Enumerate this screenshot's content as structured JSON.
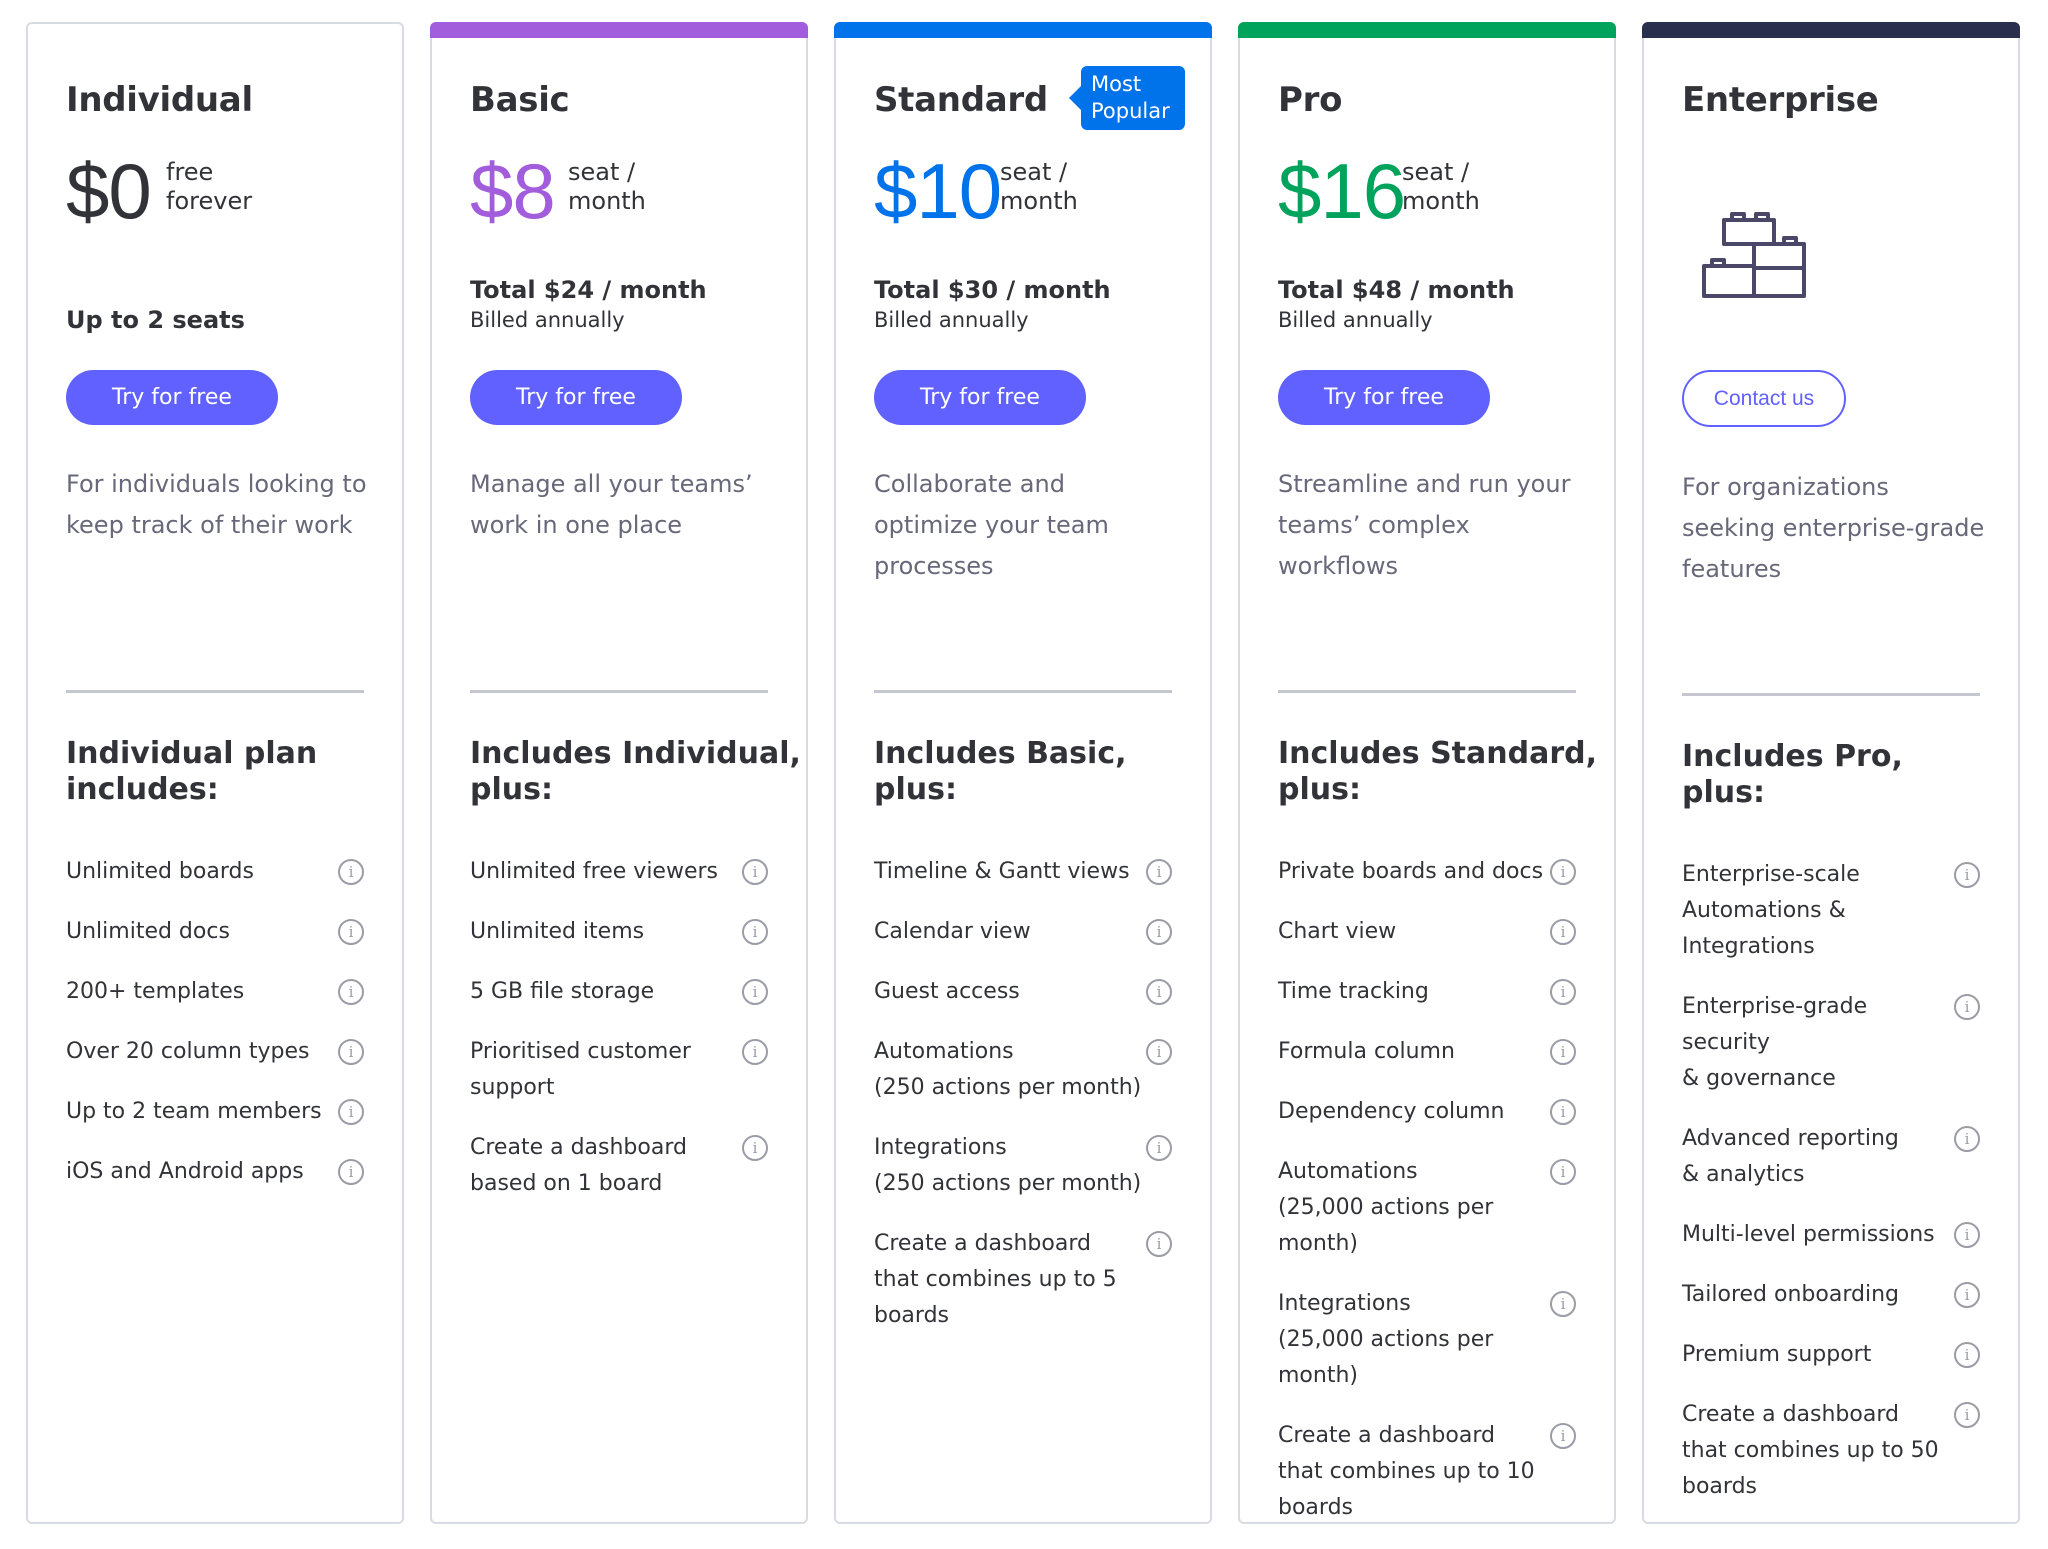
{
  "colors": {
    "basic": "#a25ddc",
    "standard": "#0073ea",
    "pro": "#00a35c",
    "enterprise": "#292f4c",
    "button": "#6161ff"
  },
  "info_icon": "i",
  "plans": {
    "individual": {
      "name": "Individual",
      "price": "$0",
      "unit_line1": "free",
      "unit_line2": "forever",
      "seats": "Up to 2 seats",
      "cta": "Try for free",
      "desc": [
        "For individuals looking to",
        "keep track of their work"
      ],
      "includes_title": [
        "Individual plan",
        "includes:"
      ],
      "features": [
        {
          "lines": [
            "Unlimited boards"
          ]
        },
        {
          "lines": [
            "Unlimited docs"
          ]
        },
        {
          "lines": [
            "200+ templates"
          ]
        },
        {
          "lines": [
            "Over 20 column types"
          ]
        },
        {
          "lines": [
            "Up to 2 team members"
          ]
        },
        {
          "lines": [
            "iOS and Android apps"
          ]
        }
      ]
    },
    "basic": {
      "name": "Basic",
      "price": "$8",
      "unit_line1": "seat /",
      "unit_line2": "month",
      "total": "Total $24 / month",
      "billed": "Billed annually",
      "cta": "Try for free",
      "desc": [
        "Manage all your teams’",
        "work in one place"
      ],
      "includes_title": [
        "Includes Individual,",
        "plus:"
      ],
      "features": [
        {
          "lines": [
            "Unlimited free viewers"
          ]
        },
        {
          "lines": [
            "Unlimited items"
          ]
        },
        {
          "lines": [
            "5 GB file storage"
          ]
        },
        {
          "lines": [
            "Prioritised customer",
            "support"
          ]
        },
        {
          "lines": [
            "Create a dashboard",
            "based on 1 board"
          ]
        }
      ]
    },
    "standard": {
      "name": "Standard",
      "badge_line1": "Most",
      "badge_line2": "Popular",
      "price": "$10",
      "unit_line1": "seat /",
      "unit_line2": "month",
      "total": "Total $30 / month",
      "billed": "Billed annually",
      "cta": "Try for free",
      "desc": [
        "Collaborate and",
        "optimize your team",
        "processes"
      ],
      "includes_title": [
        "Includes Basic,",
        "plus:"
      ],
      "features": [
        {
          "lines": [
            "Timeline & Gantt views"
          ]
        },
        {
          "lines": [
            "Calendar view"
          ]
        },
        {
          "lines": [
            "Guest access"
          ]
        },
        {
          "lines": [
            "Automations",
            "(250 actions per month)"
          ]
        },
        {
          "lines": [
            "Integrations",
            "(250 actions per month)"
          ]
        },
        {
          "lines": [
            "Create a dashboard",
            "that combines up to 5",
            "boards"
          ]
        }
      ]
    },
    "pro": {
      "name": "Pro",
      "price": "$16",
      "unit_line1": "seat /",
      "unit_line2": "month",
      "total": "Total $48 / month",
      "billed": "Billed annually",
      "cta": "Try for free",
      "desc": [
        "Streamline and run your",
        "teams’ complex",
        "workflows"
      ],
      "includes_title": [
        "Includes Standard,",
        "plus:"
      ],
      "features": [
        {
          "lines": [
            "Private boards and docs"
          ]
        },
        {
          "lines": [
            "Chart view"
          ]
        },
        {
          "lines": [
            "Time tracking"
          ]
        },
        {
          "lines": [
            "Formula column"
          ]
        },
        {
          "lines": [
            "Dependency column"
          ]
        },
        {
          "lines": [
            "Automations",
            "(25,000 actions per",
            "month)"
          ]
        },
        {
          "lines": [
            "Integrations",
            "(25,000 actions per",
            "month)"
          ]
        },
        {
          "lines": [
            "Create a dashboard",
            "that combines up to 10",
            "boards"
          ]
        }
      ]
    },
    "enterprise": {
      "name": "Enterprise",
      "cta": "Contact us",
      "desc": [
        "For organizations",
        "seeking enterprise-grade",
        "features"
      ],
      "includes_title": [
        "Includes Pro,",
        "plus:"
      ],
      "features": [
        {
          "lines": [
            "Enterprise-scale",
            "Automations &",
            "Integrations"
          ]
        },
        {
          "lines": [
            "Enterprise-grade",
            "security",
            "& governance"
          ]
        },
        {
          "lines": [
            "Advanced reporting",
            "& analytics"
          ]
        },
        {
          "lines": [
            "Multi-level permissions"
          ]
        },
        {
          "lines": [
            "Tailored onboarding"
          ]
        },
        {
          "lines": [
            "Premium support"
          ]
        },
        {
          "lines": [
            "Create a dashboard",
            "that combines up to 50",
            "boards"
          ]
        }
      ]
    }
  }
}
